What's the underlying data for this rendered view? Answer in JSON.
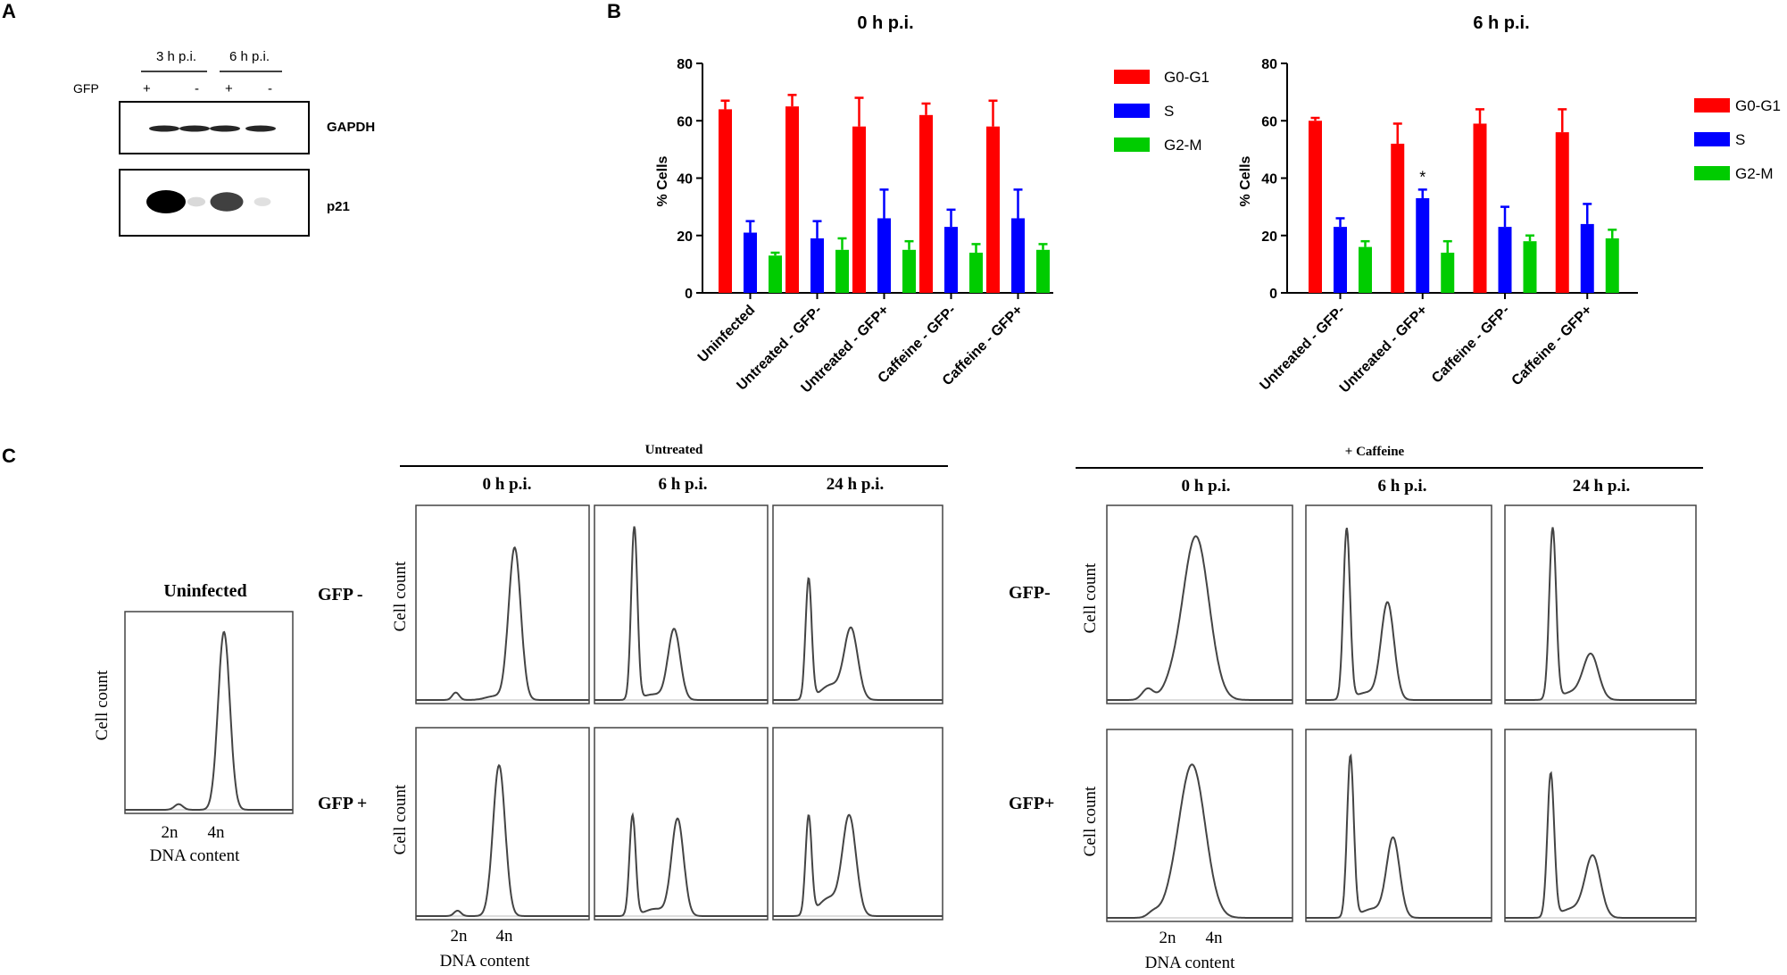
{
  "panel_labels": {
    "a": "A",
    "b": "B",
    "c": "C"
  },
  "western_blot": {
    "gfp_label": "GFP",
    "group_3h": "3 h p.i.",
    "group_6h": "6 h p.i.",
    "gfp_signs": [
      "+",
      "-",
      "+",
      "-"
    ],
    "band_gapdh": "GAPDH",
    "band_p21": "p21",
    "p21_intensity": [
      1.0,
      0.15,
      0.75,
      0.1
    ],
    "gapdh_intensity": [
      1.0,
      1.0,
      1.0,
      1.0
    ]
  },
  "legend": {
    "g0g1": "G0-G1",
    "s": "S",
    "g2m": "G2-M"
  },
  "colors": {
    "g0g1": "#ff0000",
    "s": "#0000ff",
    "g2m": "#00cc00",
    "trace": "#444444"
  },
  "chart_data": [
    {
      "type": "bar",
      "title": "0 h p.i.",
      "ylabel": "% Cells",
      "ylim": [
        0,
        80
      ],
      "yticks": [
        "0",
        "20",
        "40",
        "60",
        "80"
      ],
      "categories": [
        "Uninfected",
        "Untreated - GFP-",
        "Untreated - GFP+",
        "Caffeine - GFP-",
        "Caffeine - GFP+"
      ],
      "series": [
        {
          "name": "G0-G1",
          "values": [
            64,
            65,
            58,
            62,
            58
          ],
          "errors": [
            3,
            4,
            10,
            4,
            9
          ]
        },
        {
          "name": "S",
          "values": [
            21,
            19,
            26,
            23,
            26
          ],
          "errors": [
            4,
            6,
            10,
            6,
            10
          ]
        },
        {
          "name": "G2-M",
          "values": [
            13,
            15,
            15,
            14,
            15
          ],
          "errors": [
            1,
            4,
            3,
            3,
            2
          ]
        }
      ],
      "annotations": []
    },
    {
      "type": "bar",
      "title": "6 h p.i.",
      "ylabel": "% Cells",
      "ylim": [
        0,
        80
      ],
      "yticks": [
        "0",
        "20",
        "40",
        "60",
        "80"
      ],
      "categories": [
        "Untreated - GFP-",
        "Untreated - GFP+",
        "Caffeine - GFP-",
        "Caffeine - GFP+"
      ],
      "series": [
        {
          "name": "G0-G1",
          "values": [
            60,
            52,
            59,
            56
          ],
          "errors": [
            1,
            7,
            5,
            8
          ]
        },
        {
          "name": "S",
          "values": [
            23,
            33,
            23,
            24
          ],
          "errors": [
            3,
            3,
            7,
            7
          ]
        },
        {
          "name": "G2-M",
          "values": [
            16,
            14,
            18,
            19
          ],
          "errors": [
            2,
            4,
            2,
            3
          ]
        }
      ],
      "annotations": [
        {
          "category": "Untreated - GFP+",
          "series": "S",
          "text": "*"
        }
      ]
    }
  ],
  "flow": {
    "untreated_header": "Untreated",
    "caffeine_header": "+ Caffeine",
    "time_labels": [
      "0 h p.i.",
      "6 h p.i.",
      "24 h p.i."
    ],
    "uninfected_title": "Uninfected",
    "row_gfp_minus": "GFP -",
    "row_gfp_plus": "GFP +",
    "row_gfp_minus_c": "GFP-",
    "row_gfp_plus_c": "GFP+",
    "y_axis": "Cell count",
    "x_axis": "DNA content",
    "tick_2n": "2n",
    "tick_4n": "4n"
  }
}
